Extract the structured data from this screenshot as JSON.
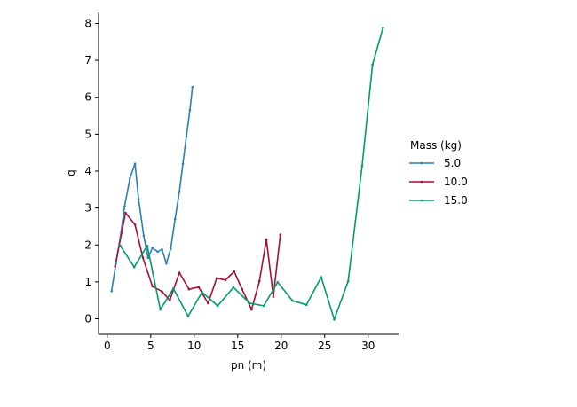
{
  "chart_data": {
    "type": "line",
    "title": "",
    "xlabel": "pn (m)",
    "ylabel": "q",
    "xlim": [
      -1,
      33.5
    ],
    "ylim": [
      -0.42,
      8.3
    ],
    "xticks": [
      0,
      5,
      10,
      15,
      20,
      25,
      30
    ],
    "yticks": [
      0,
      1,
      2,
      3,
      4,
      5,
      6,
      7,
      8
    ],
    "grid": false,
    "legend": {
      "title": "Mass (kg)",
      "placement": "right"
    },
    "series": [
      {
        "name": "5.0",
        "color": "#2c7fb8",
        "x": [
          0.5,
          1.0,
          1.5,
          2.0,
          2.6,
          3.2,
          3.6,
          4.2,
          4.7,
          5.2,
          5.8,
          6.3,
          6.8,
          7.3,
          7.8,
          8.3,
          8.7,
          9.1,
          9.5,
          9.8
        ],
        "y": [
          0.75,
          1.5,
          2.2,
          3.05,
          3.8,
          4.2,
          3.25,
          2.25,
          1.65,
          1.92,
          1.82,
          1.88,
          1.5,
          1.9,
          2.7,
          3.45,
          4.2,
          4.95,
          5.65,
          6.28
        ]
      },
      {
        "name": "10.0",
        "color": "#a50f36",
        "x": [
          0.9,
          2.1,
          3.2,
          4.1,
          5.2,
          6.3,
          7.2,
          8.3,
          9.4,
          10.5,
          11.6,
          12.6,
          13.6,
          14.6,
          15.5,
          16.6,
          17.5,
          18.3,
          19.1,
          19.9
        ],
        "y": [
          1.42,
          2.87,
          2.55,
          1.65,
          0.88,
          0.74,
          0.5,
          1.25,
          0.8,
          0.86,
          0.42,
          1.1,
          1.05,
          1.28,
          0.8,
          0.25,
          1.02,
          2.15,
          0.6,
          2.28
        ]
      },
      {
        "name": "15.0",
        "color": "#009b6e",
        "x": [
          1.5,
          3.1,
          4.6,
          6.1,
          7.6,
          9.3,
          10.9,
          12.7,
          14.5,
          16.4,
          18.0,
          19.6,
          21.3,
          22.9,
          24.6,
          26.1,
          27.7,
          29.3,
          30.5,
          31.7
        ],
        "y": [
          1.98,
          1.4,
          1.98,
          0.25,
          0.82,
          0.07,
          0.72,
          0.35,
          0.85,
          0.42,
          0.35,
          0.99,
          0.49,
          0.38,
          1.13,
          -0.02,
          1.02,
          4.14,
          6.88,
          7.88
        ]
      }
    ]
  }
}
